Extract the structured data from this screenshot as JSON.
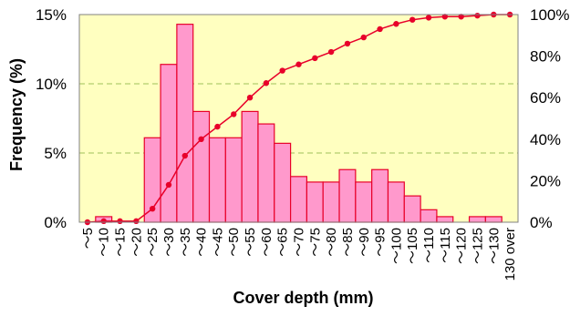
{
  "chart_data": {
    "type": "bar",
    "xlabel": "Cover depth  (mm)",
    "ylabel": "Frequency (%)",
    "y2label": "",
    "ylim": [
      0,
      15
    ],
    "y2lim": [
      0,
      100
    ],
    "yticks": [
      "0%",
      "5%",
      "10%",
      "15%"
    ],
    "y2ticks": [
      "0%",
      "20%",
      "40%",
      "60%",
      "80%",
      "100%"
    ],
    "grid": "horizontal dashed",
    "categories": [
      "～5",
      "～10",
      "～15",
      "～20",
      "～25",
      "～30",
      "～35",
      "～40",
      "～45",
      "～50",
      "～55",
      "～60",
      "～65",
      "～70",
      "～75",
      "～80",
      "～85",
      "～90",
      "～95",
      "～100",
      "～105",
      "～110",
      "～115",
      "～120",
      "～125",
      "～130",
      "130 over"
    ],
    "series": [
      {
        "kind": "bar",
        "axis": "left",
        "values": [
          0,
          0.4,
          0,
          0,
          6.1,
          11.4,
          14.3,
          8.0,
          6.1,
          6.1,
          8.0,
          7.1,
          5.7,
          3.3,
          2.9,
          2.9,
          3.8,
          2.9,
          3.8,
          2.9,
          1.9,
          0.9,
          0.4,
          0,
          0.4,
          0.4,
          0
        ]
      },
      {
        "kind": "line",
        "axis": "right",
        "values": [
          0,
          0.5,
          0.5,
          0.5,
          6.5,
          18,
          32,
          40,
          46,
          52,
          60,
          67,
          73,
          76,
          79,
          82,
          86,
          89,
          93,
          95.5,
          97.5,
          98.5,
          99,
          99,
          99.5,
          100,
          100
        ]
      }
    ],
    "colors": {
      "plot_background": "#FFFFC0",
      "bar_fill": "#FF99CC",
      "bar_edge": "#E8002A",
      "line": "#E8002A",
      "grid": "#9FC05A"
    }
  }
}
